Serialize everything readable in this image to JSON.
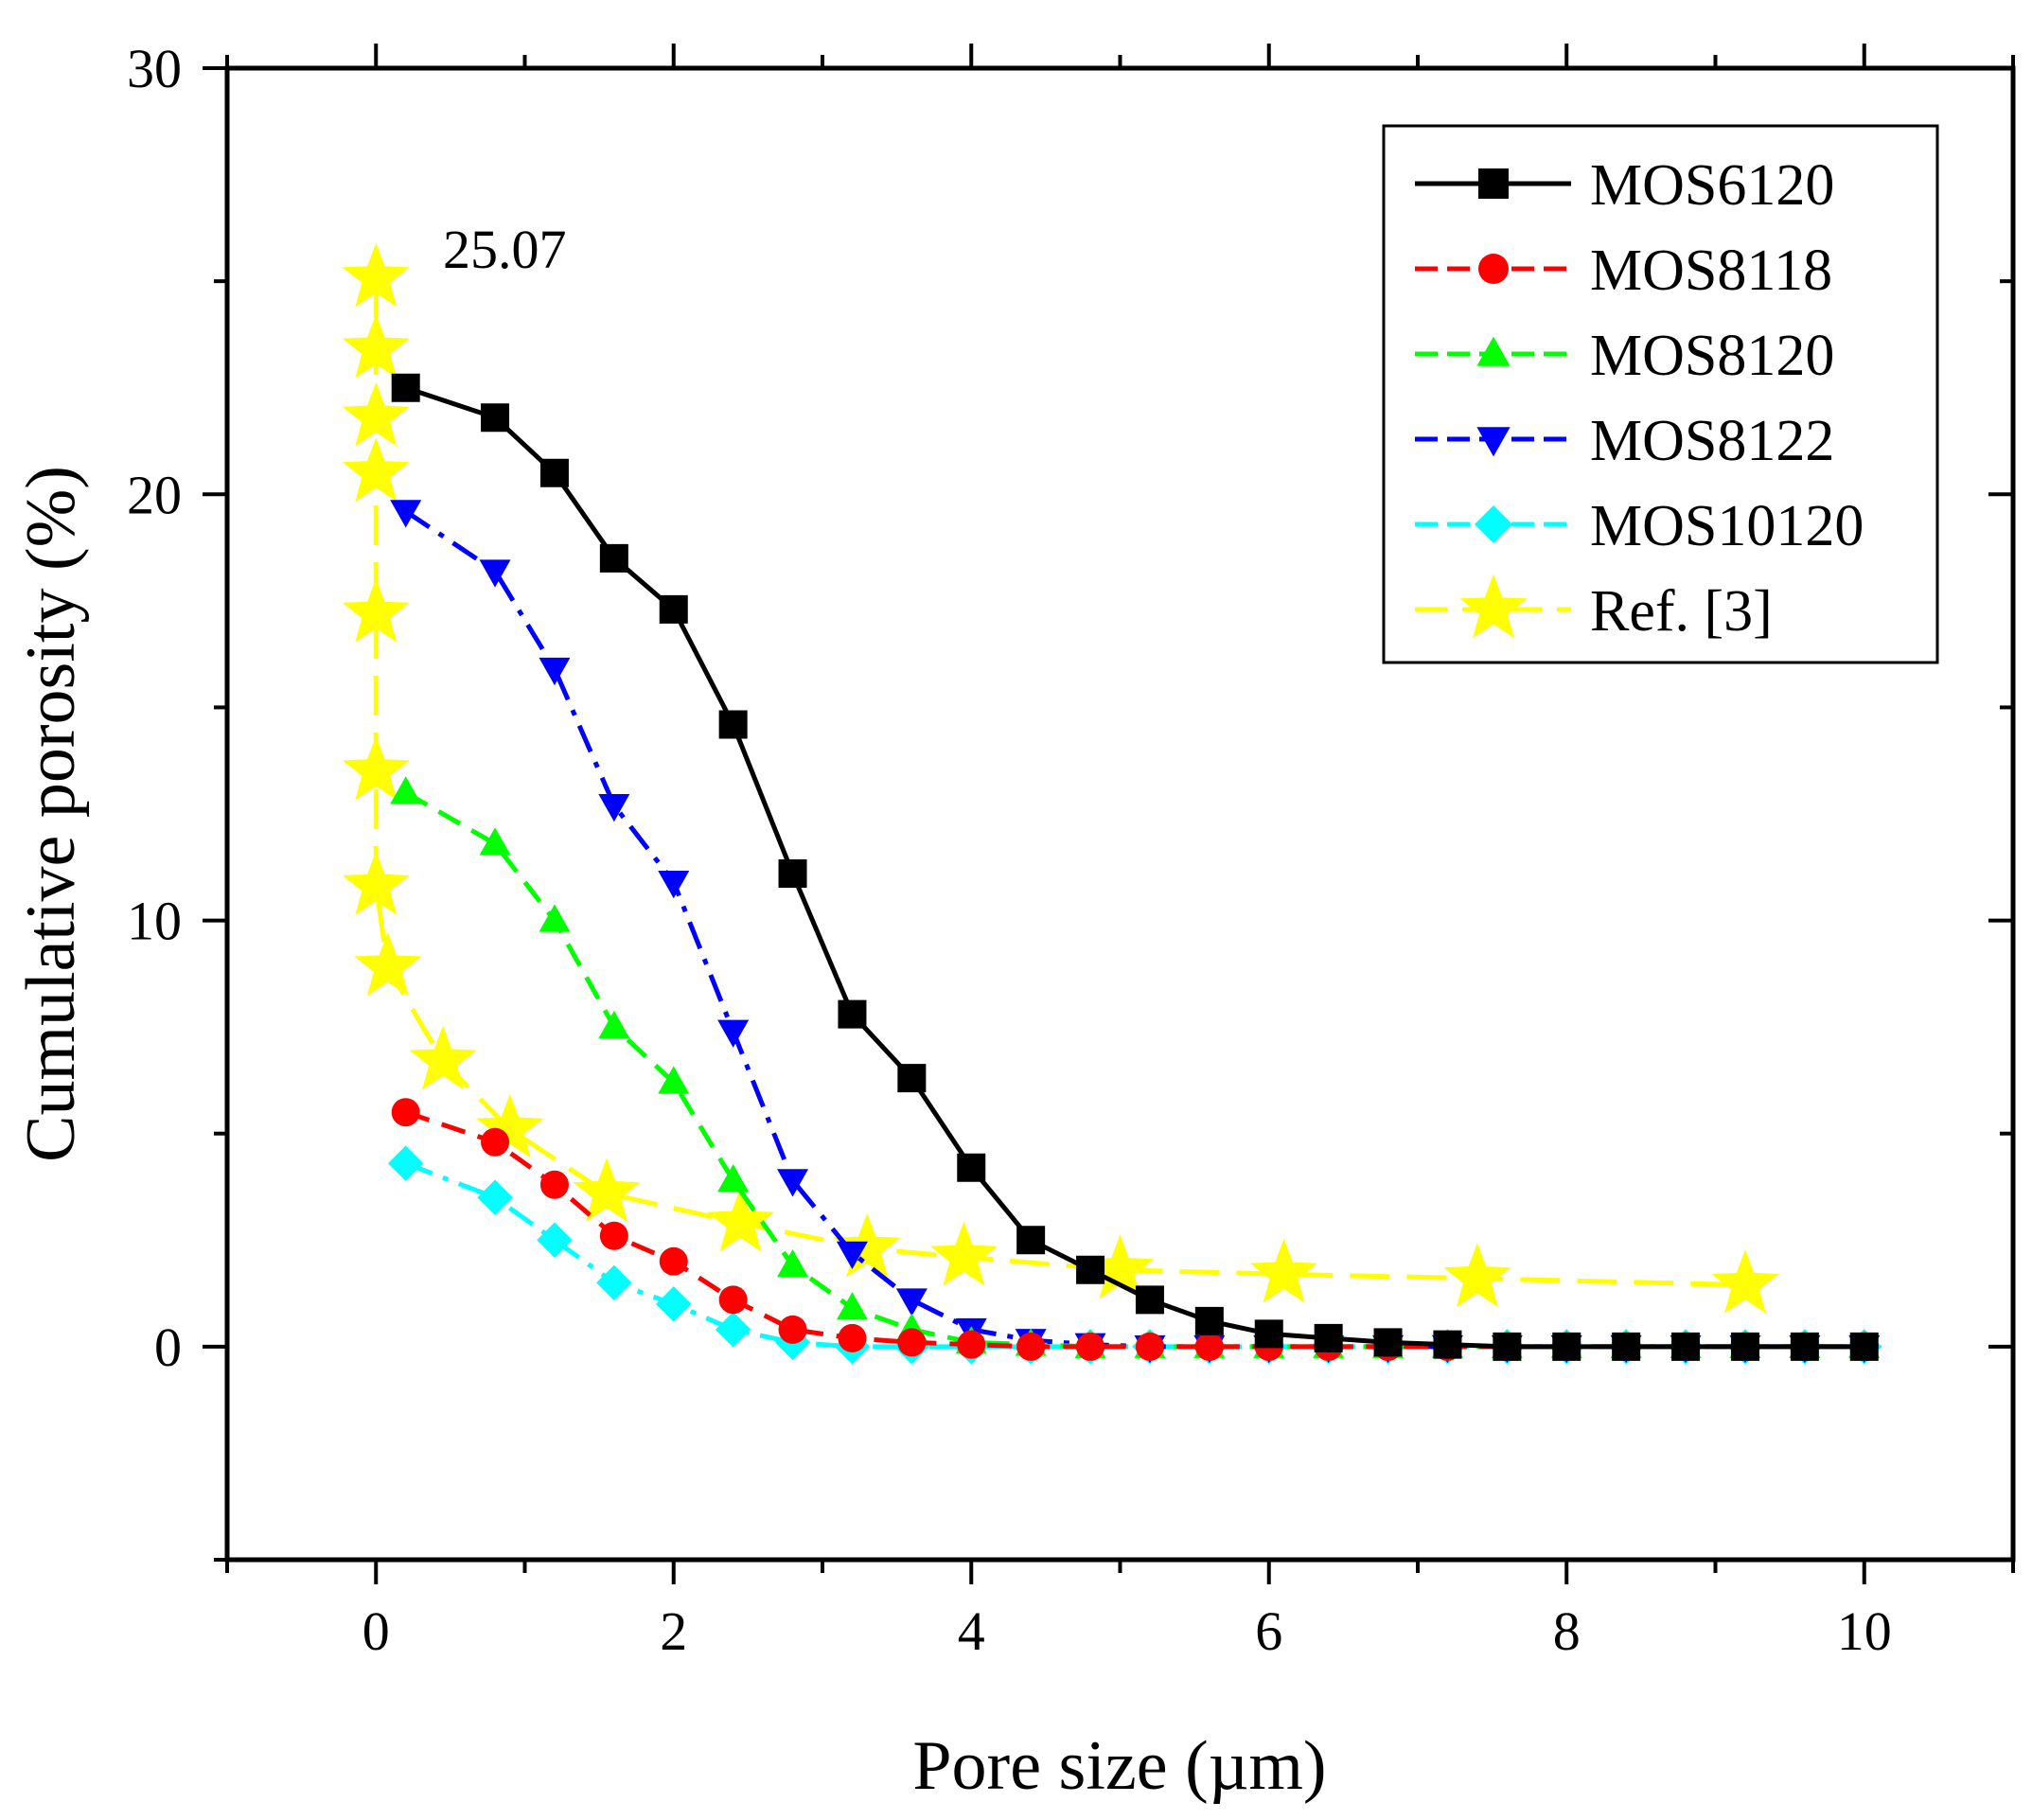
{
  "chart_data": {
    "type": "line",
    "title": "",
    "xlabel": "Pore size (µm)",
    "ylabel": "Cumulative porosity (%)",
    "xlim": [
      -1,
      11
    ],
    "ylim": [
      -5,
      30
    ],
    "xticks": [
      0,
      2,
      4,
      6,
      8,
      10
    ],
    "yticks": [
      0,
      10,
      20,
      30
    ],
    "grid": false,
    "legend_position": "top-right",
    "annotation": {
      "text": "25.07",
      "x": 0,
      "y": 25.07
    },
    "series": [
      {
        "name": "MOS6120",
        "color": "#000000",
        "marker": "square",
        "dash": "solid",
        "x": [
          0.2,
          0.8,
          1.2,
          1.6,
          2.0,
          2.4,
          2.8,
          3.2,
          3.6,
          4.0,
          4.4,
          4.8,
          5.2,
          5.6,
          6.0,
          6.4,
          6.8,
          7.2,
          7.6,
          8.0,
          8.4,
          8.8,
          9.2,
          9.6,
          10.0
        ],
        "y": [
          22.5,
          21.8,
          20.5,
          18.5,
          17.3,
          14.6,
          11.1,
          7.8,
          6.3,
          4.2,
          2.5,
          1.8,
          1.1,
          0.6,
          0.3,
          0.2,
          0.1,
          0.05,
          0.0,
          0.0,
          0.0,
          0.0,
          0.0,
          0.0,
          0.0
        ]
      },
      {
        "name": "MOS8118",
        "color": "#ff0000",
        "marker": "circle",
        "dash": "dash",
        "x": [
          0.2,
          0.8,
          1.2,
          1.6,
          2.0,
          2.4,
          2.8,
          3.2,
          3.6,
          4.0,
          4.4,
          4.8,
          5.2,
          5.6,
          6.0,
          6.4,
          6.8,
          7.2,
          7.6,
          8.0,
          8.4,
          8.8,
          9.2,
          9.6,
          10.0
        ],
        "y": [
          5.5,
          4.8,
          3.8,
          2.6,
          2.0,
          1.1,
          0.4,
          0.2,
          0.1,
          0.05,
          0.0,
          0.0,
          0.0,
          0.0,
          0.0,
          0.0,
          0.0,
          0.0,
          0.0,
          0.0,
          0.0,
          0.0,
          0.0,
          0.0,
          0.0
        ]
      },
      {
        "name": "MOS8120",
        "color": "#00ff00",
        "marker": "triangle-up",
        "dash": "dash",
        "x": [
          0.2,
          0.8,
          1.2,
          1.6,
          2.0,
          2.4,
          2.8,
          3.2,
          3.6,
          4.0,
          4.4,
          4.8,
          5.2,
          5.6,
          6.0,
          6.4,
          6.8,
          7.2,
          7.6,
          8.0,
          8.4,
          8.8,
          9.2,
          9.6,
          10.0
        ],
        "y": [
          13.0,
          11.8,
          10.0,
          7.5,
          6.2,
          3.9,
          1.9,
          0.9,
          0.4,
          0.1,
          0.05,
          0.0,
          0.0,
          0.0,
          0.0,
          0.0,
          0.0,
          0.0,
          0.0,
          0.0,
          0.0,
          0.0,
          0.0,
          0.0,
          0.0
        ]
      },
      {
        "name": "MOS8122",
        "color": "#0000ff",
        "marker": "triangle-down",
        "dash": "dashdot",
        "x": [
          0.2,
          0.8,
          1.2,
          1.6,
          2.0,
          2.4,
          2.8,
          3.2,
          3.6,
          4.0,
          4.4,
          4.8,
          5.2,
          5.6,
          6.0,
          6.4,
          6.8,
          7.2,
          7.6,
          8.0,
          8.4,
          8.8,
          9.2,
          9.6,
          10.0
        ],
        "y": [
          19.6,
          18.2,
          15.9,
          12.7,
          10.9,
          7.4,
          3.9,
          2.2,
          1.1,
          0.4,
          0.15,
          0.05,
          0.0,
          0.0,
          0.0,
          0.0,
          0.0,
          0.0,
          0.0,
          0.0,
          0.0,
          0.0,
          0.0,
          0.0,
          0.0
        ]
      },
      {
        "name": "MOS10120",
        "color": "#00ffff",
        "marker": "diamond",
        "dash": "dashdot",
        "x": [
          0.2,
          0.8,
          1.2,
          1.6,
          2.0,
          2.4,
          2.8,
          3.2,
          3.6,
          4.0,
          4.4,
          4.8,
          5.2,
          5.6,
          6.0,
          6.4,
          6.8,
          7.2,
          7.6,
          8.0,
          8.4,
          8.8,
          9.2,
          9.6,
          10.0
        ],
        "y": [
          4.3,
          3.5,
          2.5,
          1.5,
          1.0,
          0.4,
          0.1,
          0.0,
          0.0,
          0.0,
          0.0,
          0.0,
          0.0,
          0.0,
          0.0,
          0.0,
          0.0,
          0.0,
          0.0,
          0.0,
          0.0,
          0.0,
          0.0,
          0.0,
          0.0
        ]
      },
      {
        "name": "Ref. [3]",
        "color": "#ffff00",
        "marker": "star",
        "dash": "longdash",
        "x": [
          0.0,
          0.0,
          0.0,
          0.0,
          0.0,
          0.0,
          0.0,
          0.08,
          0.45,
          0.9,
          1.55,
          2.45,
          3.3,
          3.95,
          5.0,
          6.1,
          7.4,
          9.2
        ],
        "y": [
          25.07,
          23.4,
          21.8,
          20.5,
          17.2,
          13.5,
          10.8,
          8.9,
          6.7,
          5.1,
          3.6,
          2.9,
          2.3,
          2.1,
          1.8,
          1.7,
          1.6,
          1.45
        ]
      }
    ]
  }
}
